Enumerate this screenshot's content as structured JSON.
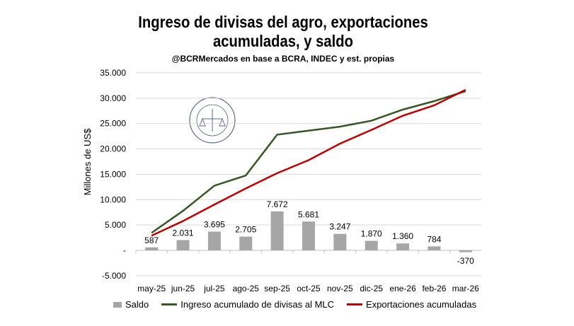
{
  "chart_data": {
    "type": "bar+line",
    "title": "Ingreso de divisas del agro, exportaciones acumuladas, y saldo",
    "subtitle": "@BCRMercados  en base a BCRA, INDEC y est. propias",
    "ylabel": "Millones de US$",
    "xlabel": "",
    "ylim": [
      -5000,
      35000
    ],
    "yticks": [
      "-5.000",
      "-",
      "5.000",
      "10.000",
      "15.000",
      "20.000",
      "25.000",
      "30.000",
      "35.000"
    ],
    "ytick_values": [
      -5000,
      0,
      5000,
      10000,
      15000,
      20000,
      25000,
      30000,
      35000
    ],
    "grid": true,
    "legend": "bottom",
    "categories": [
      "may-25",
      "jun-25",
      "jul-25",
      "ago-25",
      "sep-25",
      "oct-25",
      "nov-25",
      "dic-25",
      "ene-26",
      "feb-26",
      "mar-26"
    ],
    "series": [
      {
        "name": "Saldo",
        "type": "bar",
        "color": "#a6a6a6",
        "values": [
          587,
          2031,
          3695,
          2705,
          7672,
          5681,
          3247,
          1870,
          1360,
          784,
          -370
        ],
        "labels": [
          "587",
          "2.031",
          "3.695",
          "2.705",
          "7.672",
          "5.681",
          "3.247",
          "1.870",
          "1.360",
          "784",
          "-370"
        ]
      },
      {
        "name": "Ingreso acumulado de divisas al MLC",
        "type": "line",
        "color": "#375623",
        "values": [
          3450,
          7780,
          12750,
          14760,
          22810,
          23600,
          24390,
          25560,
          27750,
          29420,
          31380
        ]
      },
      {
        "name": "Exportaciones acumuladas",
        "type": "line",
        "color": "#c00000",
        "values": [
          2890,
          5770,
          9030,
          12200,
          15220,
          17780,
          21040,
          23740,
          26540,
          28590,
          31660
        ]
      }
    ]
  },
  "title_lines": [
    "Ingreso de divisas del agro, exportaciones",
    "acumuladas, y saldo"
  ],
  "watermark": "BOLSA DE COMERCIO DE ROSARIO"
}
